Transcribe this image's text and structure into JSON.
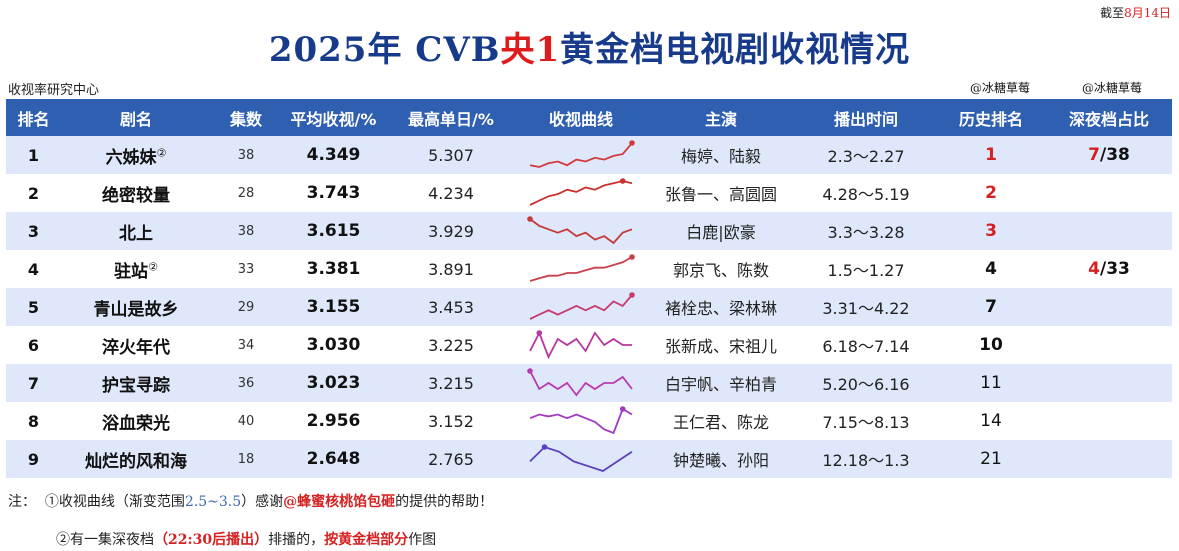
{
  "as_of": {
    "pre": "截至",
    "date": "8月14日"
  },
  "title": {
    "pre": "2025年 CVB",
    "red": "央1",
    "post": "黄金档电视剧收视情况"
  },
  "source": "收视率研究中心",
  "watermarks": [
    "@冰糖草莓",
    "@冰糖草莓"
  ],
  "columns": [
    "排名",
    "剧名",
    "集数",
    "平均收视/%",
    "最高单日/%",
    "收视曲线",
    "主演",
    "播出时间",
    "历史排名",
    "深夜档占比"
  ],
  "rows": [
    {
      "rank": "1",
      "name": "六姊妹",
      "sup": "②",
      "episodes": "38",
      "avg": "4.349",
      "peak": "5.307",
      "cast": "梅婷、陆毅",
      "date": "2.3～2.27",
      "hist": "1",
      "hist_style": "red",
      "late_num": "7",
      "late_den": "/38",
      "curve": [
        4.1,
        4.0,
        4.2,
        4.3,
        4.1,
        4.4,
        4.3,
        4.5,
        4.4,
        4.6,
        4.7,
        5.3
      ],
      "curve_color": "#d23a3a"
    },
    {
      "rank": "2",
      "name": "绝密较量",
      "sup": "",
      "episodes": "28",
      "avg": "3.743",
      "peak": "4.234",
      "cast": "张鲁一、高圆圆",
      "date": "4.28～5.19",
      "hist": "2",
      "hist_style": "red",
      "late_num": "",
      "late_den": "",
      "curve": [
        3.1,
        3.3,
        3.5,
        3.6,
        3.8,
        3.7,
        3.9,
        3.8,
        4.0,
        4.1,
        4.2,
        4.1
      ],
      "curve_color": "#c8322f"
    },
    {
      "rank": "3",
      "name": "北上",
      "sup": "",
      "episodes": "38",
      "avg": "3.615",
      "peak": "3.929",
      "cast": "白鹿|欧豪",
      "date": "3.3～3.28",
      "hist": "3",
      "hist_style": "red",
      "late_num": "",
      "late_den": "",
      "curve": [
        3.9,
        3.7,
        3.6,
        3.5,
        3.6,
        3.4,
        3.5,
        3.3,
        3.4,
        3.2,
        3.5,
        3.6
      ],
      "curve_color": "#c63a3a"
    },
    {
      "rank": "4",
      "name": "驻站",
      "sup": "②",
      "episodes": "33",
      "avg": "3.381",
      "peak": "3.891",
      "cast": "郭京飞、陈数",
      "date": "1.5～1.27",
      "hist": "4",
      "hist_style": "bold",
      "late_num": "4",
      "late_den": "/33",
      "curve": [
        3.0,
        3.1,
        3.2,
        3.2,
        3.3,
        3.3,
        3.4,
        3.5,
        3.5,
        3.6,
        3.7,
        3.9
      ],
      "curve_color": "#c8404a"
    },
    {
      "rank": "5",
      "name": "青山是故乡",
      "sup": "",
      "episodes": "29",
      "avg": "3.155",
      "peak": "3.453",
      "cast": "褚栓忠、梁林琳",
      "date": "3.31～4.22",
      "hist": "7",
      "hist_style": "bold",
      "late_num": "",
      "late_den": "",
      "curve": [
        2.9,
        3.0,
        3.1,
        3.0,
        3.1,
        3.2,
        3.1,
        3.2,
        3.1,
        3.3,
        3.2,
        3.45
      ],
      "curve_color": "#c83a70"
    },
    {
      "rank": "6",
      "name": "淬火年代",
      "sup": "",
      "episodes": "34",
      "avg": "3.030",
      "peak": "3.225",
      "cast": "张新成、宋祖儿",
      "date": "6.18～7.14",
      "hist": "10",
      "hist_style": "bold",
      "late_num": "",
      "late_den": "",
      "curve": [
        2.9,
        3.2,
        2.8,
        3.1,
        3.0,
        3.1,
        2.9,
        3.2,
        3.0,
        3.1,
        3.0,
        3.0
      ],
      "curve_color": "#b5379f"
    },
    {
      "rank": "7",
      "name": "护宝寻踪",
      "sup": "",
      "episodes": "36",
      "avg": "3.023",
      "peak": "3.215",
      "cast": "白宇帆、辛柏青",
      "date": "5.20～6.16",
      "hist": "11",
      "hist_style": "normal",
      "late_num": "",
      "late_den": "",
      "curve": [
        3.2,
        2.9,
        3.0,
        2.9,
        3.0,
        2.8,
        3.0,
        2.9,
        3.0,
        3.0,
        3.1,
        2.9
      ],
      "curve_color": "#b93ab0"
    },
    {
      "rank": "8",
      "name": "浴血荣光",
      "sup": "",
      "episodes": "40",
      "avg": "2.956",
      "peak": "3.152",
      "cast": "王仁君、陈龙",
      "date": "7.15～8.13",
      "hist": "14",
      "hist_style": "normal",
      "late_num": "",
      "late_den": "",
      "curve": [
        2.9,
        3.0,
        2.95,
        3.0,
        2.9,
        3.0,
        2.9,
        2.8,
        2.6,
        2.5,
        3.15,
        3.0
      ],
      "curve_color": "#a23ac0"
    },
    {
      "rank": "9",
      "name": "灿烂的风和海",
      "sup": "",
      "episodes": "18",
      "avg": "2.648",
      "peak": "2.765",
      "cast": "钟楚曦、孙阳",
      "date": "12.18～1.3",
      "hist": "21",
      "hist_style": "normal",
      "late_num": "",
      "late_den": "",
      "curve": [
        2.6,
        2.75,
        2.7,
        2.6,
        2.55,
        2.5,
        2.6,
        2.7
      ],
      "curve_color": "#5b3fc0"
    }
  ],
  "notes": {
    "label": "注：",
    "n1_a": "①收视曲线（渐变范围",
    "n1_range": "2.5~3.5",
    "n1_b": "）感谢",
    "n1_credit": "@蜂蜜核桃馅包砸",
    "n1_c": "的提供的帮助！",
    "n2_a": "②有一集深夜档",
    "n2_red1": "（22:30后播出）",
    "n2_b": "排播的，",
    "n2_red2": "按黄金档部分",
    "n2_c": "作图"
  }
}
